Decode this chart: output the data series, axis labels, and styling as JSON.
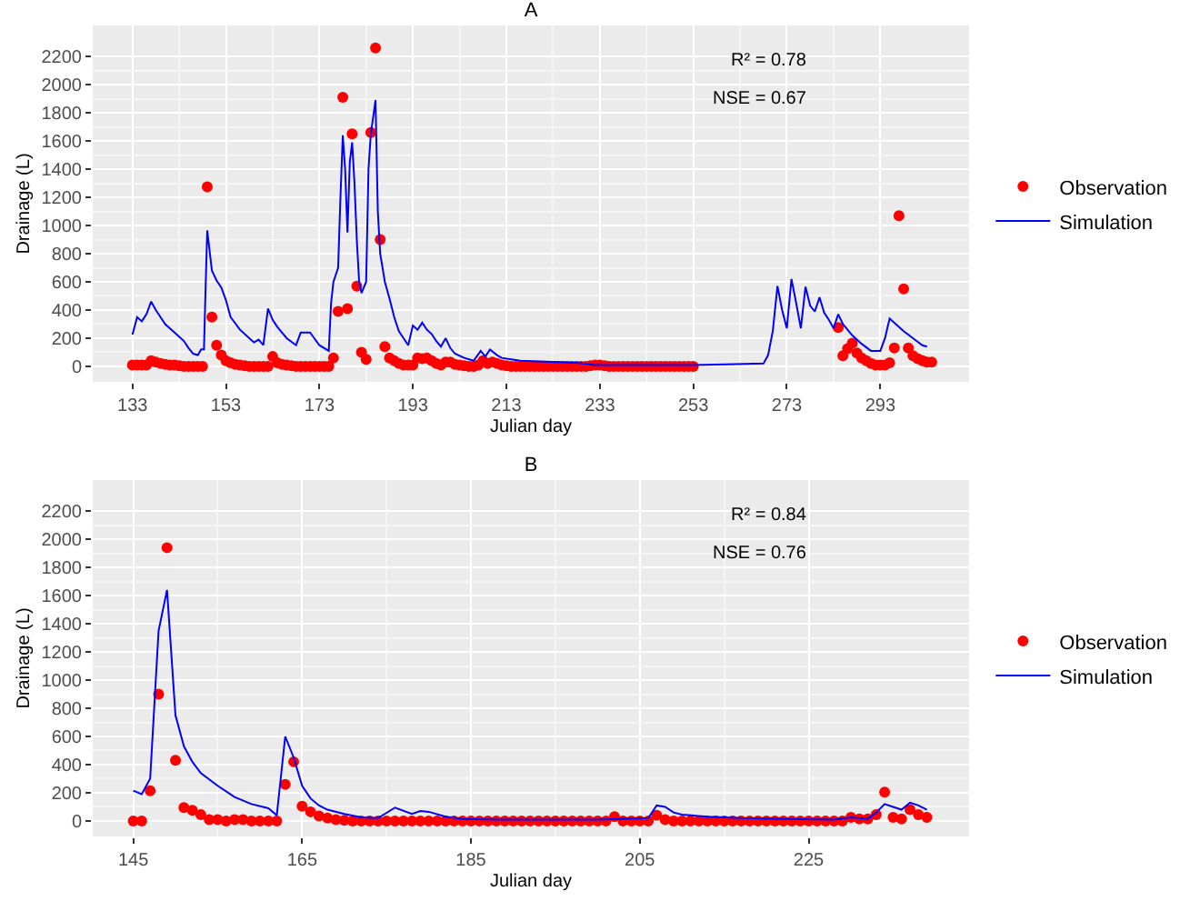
{
  "chart_data": [
    {
      "type": "scatter",
      "title": "A",
      "xlabel": "Julian day",
      "ylabel": "Drainage (L)",
      "annotations": [
        "R² = 0.78",
        "NSE = 0.67"
      ],
      "xlim": [
        124.5,
        312
      ],
      "ylim": [
        -110,
        2420
      ],
      "xticks": [
        133,
        153,
        173,
        193,
        213,
        233,
        253,
        273,
        293
      ],
      "yticks": [
        0,
        200,
        400,
        600,
        800,
        1000,
        1200,
        1400,
        1600,
        1800,
        2000,
        2200
      ],
      "grid": true,
      "legend": "right",
      "series": [
        {
          "name": "Observation",
          "type": "scatter",
          "marker": "circle",
          "color": "#ff0000",
          "x": [
            133,
            134,
            135,
            136,
            137,
            138,
            139,
            140,
            141,
            142,
            143,
            144,
            145,
            146,
            147,
            148,
            149,
            150,
            151,
            152,
            153,
            154,
            155,
            156,
            157,
            158,
            159,
            160,
            161,
            162,
            163,
            164,
            165,
            166,
            167,
            168,
            169,
            170,
            171,
            172,
            173,
            174,
            175,
            176,
            177,
            178,
            179,
            180,
            181,
            182,
            183,
            184,
            185,
            186,
            187,
            188,
            189,
            190,
            191,
            192,
            193,
            194,
            195,
            196,
            197,
            198,
            199,
            200,
            201,
            202,
            203,
            204,
            205,
            206,
            207,
            208,
            209,
            210,
            211,
            212,
            213,
            214,
            215,
            216,
            217,
            218,
            219,
            220,
            221,
            222,
            223,
            224,
            225,
            226,
            227,
            228,
            229,
            230,
            231,
            232,
            233,
            234,
            235,
            236,
            237,
            238,
            239,
            240,
            241,
            242,
            243,
            244,
            245,
            246,
            247,
            248,
            249,
            250,
            251,
            252,
            253,
            284,
            285,
            286,
            287,
            288,
            289,
            290,
            291,
            292,
            293,
            294,
            295,
            296,
            297,
            298,
            299,
            300,
            301,
            302,
            303,
            304
          ],
          "values": [
            10,
            10,
            10,
            10,
            40,
            30,
            20,
            15,
            10,
            10,
            5,
            0,
            0,
            0,
            0,
            0,
            1275,
            350,
            150,
            80,
            40,
            25,
            15,
            10,
            5,
            0,
            0,
            0,
            0,
            0,
            70,
            25,
            15,
            10,
            5,
            0,
            0,
            0,
            0,
            0,
            0,
            0,
            0,
            60,
            390,
            1910,
            410,
            1650,
            570,
            100,
            50,
            1660,
            2260,
            900,
            140,
            60,
            40,
            20,
            10,
            10,
            10,
            60,
            55,
            60,
            40,
            20,
            10,
            30,
            30,
            15,
            10,
            5,
            0,
            0,
            10,
            40,
            20,
            30,
            20,
            10,
            5,
            0,
            0,
            0,
            0,
            0,
            0,
            0,
            0,
            0,
            0,
            0,
            0,
            0,
            0,
            0,
            0,
            0,
            5,
            10,
            10,
            5,
            0,
            0,
            0,
            0,
            0,
            0,
            0,
            0,
            0,
            0,
            0,
            0,
            0,
            0,
            0,
            0,
            0,
            0,
            0,
            275,
            75,
            125,
            165,
            95,
            60,
            40,
            20,
            10,
            10,
            10,
            25,
            130,
            1070,
            550,
            130,
            75,
            55,
            40,
            30,
            30
          ]
        },
        {
          "name": "Simulation",
          "type": "line",
          "color": "#0000ff",
          "x": [
            133,
            134,
            135,
            136,
            137,
            138,
            139,
            140,
            142,
            144,
            145,
            146,
            147,
            147.7,
            148.3,
            148.6,
            149,
            150,
            151,
            152,
            153,
            154,
            156,
            158,
            159,
            160,
            161,
            162,
            163,
            164,
            166,
            168,
            169,
            171,
            173,
            175,
            175.5,
            176,
            177,
            177.5,
            178,
            178.5,
            179,
            179.5,
            180,
            180.5,
            181,
            181.5,
            182,
            183,
            183.5,
            184,
            185,
            185.5,
            186,
            187,
            188,
            189,
            190,
            191,
            192,
            193,
            194,
            195,
            196,
            197,
            198,
            199,
            200,
            201,
            202,
            204,
            206,
            207.5,
            208.5,
            209.5,
            211,
            212,
            214,
            216,
            220,
            224,
            228,
            232,
            240,
            253,
            260,
            268,
            269,
            270,
            271,
            272,
            273,
            274,
            275,
            276,
            277,
            278,
            279,
            280,
            281,
            282,
            283,
            284,
            285,
            287,
            289,
            291,
            293,
            294,
            295,
            296,
            298,
            300,
            302,
            303
          ],
          "values": [
            225,
            350,
            320,
            370,
            460,
            400,
            350,
            300,
            240,
            180,
            130,
            90,
            80,
            120,
            120,
            500,
            965,
            680,
            610,
            560,
            470,
            350,
            260,
            200,
            170,
            190,
            150,
            410,
            330,
            280,
            200,
            150,
            240,
            240,
            150,
            110,
            450,
            600,
            700,
            1200,
            1640,
            1400,
            950,
            1450,
            1590,
            1300,
            900,
            600,
            520,
            600,
            1400,
            1650,
            1890,
            1100,
            800,
            600,
            480,
            350,
            250,
            200,
            150,
            290,
            260,
            310,
            260,
            230,
            180,
            140,
            200,
            130,
            90,
            60,
            40,
            110,
            70,
            120,
            80,
            60,
            50,
            40,
            35,
            30,
            25,
            10,
            10,
            10,
            15,
            20,
            80,
            250,
            570,
            400,
            270,
            620,
            450,
            270,
            565,
            430,
            390,
            490,
            380,
            330,
            270,
            370,
            300,
            220,
            160,
            110,
            110,
            200,
            340,
            310,
            250,
            200,
            150,
            140
          ]
        }
      ]
    },
    {
      "type": "scatter",
      "title": "B",
      "xlabel": "Julian day",
      "ylabel": "Drainage (L)",
      "annotations": [
        "R² = 0.84",
        "NSE = 0.76"
      ],
      "xlim": [
        140.2,
        244
      ],
      "ylim": [
        -110,
        2420
      ],
      "xticks": [
        145,
        165,
        185,
        205,
        225
      ],
      "yticks": [
        0,
        200,
        400,
        600,
        800,
        1000,
        1200,
        1400,
        1600,
        1800,
        2000,
        2200
      ],
      "grid": true,
      "legend": "right",
      "series": [
        {
          "name": "Observation",
          "type": "scatter",
          "marker": "circle",
          "color": "#ff0000",
          "x": [
            145,
            146,
            147,
            148,
            149,
            150,
            151,
            152,
            153,
            154,
            155,
            156,
            157,
            158,
            159,
            160,
            161,
            162,
            163,
            164,
            165,
            166,
            167,
            168,
            169,
            170,
            171,
            172,
            173,
            174,
            175,
            176,
            177,
            178,
            179,
            180,
            181,
            182,
            183,
            184,
            185,
            186,
            187,
            188,
            189,
            190,
            191,
            192,
            193,
            194,
            195,
            196,
            197,
            198,
            199,
            200,
            201,
            202,
            203,
            204,
            205,
            206,
            207,
            208,
            209,
            210,
            211,
            212,
            213,
            214,
            215,
            216,
            217,
            218,
            219,
            220,
            221,
            222,
            223,
            224,
            225,
            226,
            227,
            228,
            229,
            230,
            231,
            232,
            233,
            234,
            235,
            236,
            237,
            238,
            239
          ],
          "values": [
            0,
            0,
            215,
            900,
            1940,
            430,
            95,
            75,
            45,
            10,
            10,
            0,
            10,
            10,
            0,
            0,
            0,
            0,
            260,
            420,
            105,
            65,
            35,
            20,
            10,
            5,
            0,
            0,
            0,
            0,
            0,
            0,
            0,
            0,
            0,
            0,
            0,
            0,
            0,
            0,
            0,
            0,
            0,
            0,
            0,
            0,
            0,
            0,
            0,
            0,
            0,
            0,
            0,
            0,
            0,
            0,
            0,
            30,
            0,
            0,
            0,
            0,
            40,
            10,
            0,
            0,
            0,
            0,
            0,
            0,
            0,
            0,
            0,
            0,
            0,
            0,
            0,
            0,
            0,
            0,
            0,
            0,
            0,
            0,
            0,
            25,
            15,
            15,
            45,
            205,
            25,
            15,
            80,
            45,
            25
          ]
        },
        {
          "name": "Simulation",
          "type": "line",
          "color": "#0000ff",
          "x": [
            145,
            146,
            147,
            148,
            149,
            150,
            151,
            152,
            153,
            155,
            157,
            159,
            161,
            162,
            163,
            164,
            165,
            166,
            167,
            168,
            170,
            172,
            174,
            176,
            178,
            179,
            180,
            182,
            184,
            188,
            200,
            206,
            207,
            208,
            209,
            210,
            213,
            217,
            222,
            228,
            230,
            232,
            233,
            234,
            235,
            236,
            237,
            238,
            239
          ],
          "values": [
            215,
            190,
            300,
            1350,
            1640,
            750,
            530,
            420,
            340,
            250,
            170,
            120,
            90,
            40,
            600,
            450,
            250,
            160,
            110,
            80,
            50,
            25,
            20,
            95,
            50,
            70,
            65,
            30,
            15,
            10,
            10,
            20,
            110,
            100,
            60,
            45,
            30,
            20,
            15,
            10,
            25,
            15,
            60,
            120,
            100,
            80,
            130,
            110,
            80
          ]
        }
      ]
    }
  ]
}
